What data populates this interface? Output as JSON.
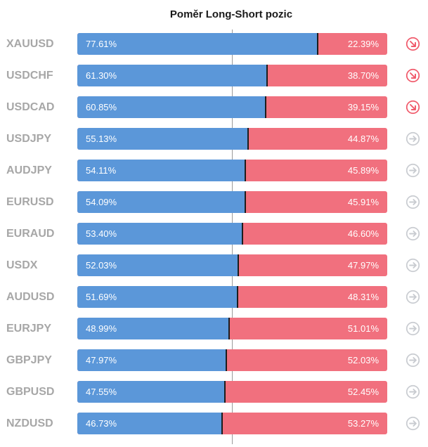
{
  "chart_data": {
    "type": "bar",
    "title": "Poměr Long-Short pozic",
    "categories": [
      "XAUUSD",
      "USDCHF",
      "USDCAD",
      "USDJPY",
      "AUDJPY",
      "EURUSD",
      "EURAUD",
      "USDX",
      "AUDUSD",
      "EURJPY",
      "GBPJPY",
      "GBPUSD",
      "NZDUSD"
    ],
    "series": [
      {
        "values": [
          77.61,
          61.3,
          60.85,
          55.13,
          54.11,
          54.09,
          53.4,
          52.03,
          51.69,
          48.99,
          47.97,
          47.55,
          46.73
        ],
        "color": "#5b97d9"
      },
      {
        "values": [
          22.39,
          38.7,
          39.15,
          44.87,
          45.89,
          45.91,
          46.6,
          47.97,
          48.31,
          51.01,
          52.03,
          52.45,
          53.27
        ],
        "color": "#f1707e"
      }
    ],
    "long_labels": [
      "77.61%",
      "61.30%",
      "60.85%",
      "55.13%",
      "54.11%",
      "54.09%",
      "53.40%",
      "52.03%",
      "51.69%",
      "48.99%",
      "47.97%",
      "47.55%",
      "46.73%"
    ],
    "short_labels": [
      "22.39%",
      "38.70%",
      "39.15%",
      "44.87%",
      "45.89%",
      "45.91%",
      "46.60%",
      "47.97%",
      "48.31%",
      "51.01%",
      "52.03%",
      "52.45%",
      "53.27%"
    ],
    "xlim": [
      0,
      100
    ],
    "stacked": true,
    "orientation": "horizontal",
    "trend_icons": [
      "down-right-arrow-icon",
      "down-right-arrow-icon",
      "down-right-arrow-icon",
      "right-arrow-icon",
      "right-arrow-icon",
      "right-arrow-icon",
      "right-arrow-icon",
      "right-arrow-icon",
      "right-arrow-icon",
      "right-arrow-icon",
      "right-arrow-icon",
      "right-arrow-icon",
      "right-arrow-icon"
    ],
    "icon_colors": {
      "down-right-arrow-icon": "#f05a6b",
      "right-arrow-icon": "#c9ccd1"
    }
  }
}
